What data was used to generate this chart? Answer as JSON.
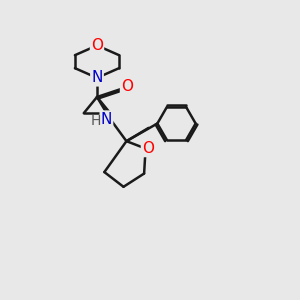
{
  "background_color": "#e8e8e8",
  "bond_color": "#1a1a1a",
  "atom_colors": {
    "O": "#ff0000",
    "N": "#0000cc",
    "C": "#1a1a1a",
    "H": "#555555"
  },
  "line_width": 1.8,
  "font_size": 11
}
